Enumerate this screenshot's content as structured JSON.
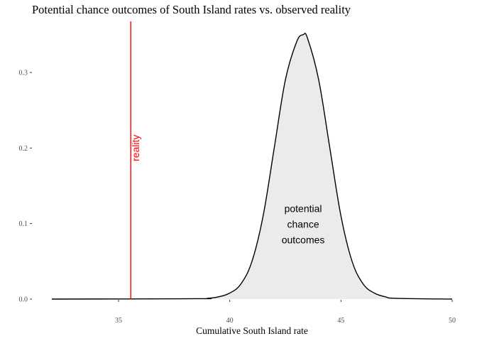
{
  "chart_data": {
    "type": "area",
    "title": "Potential chance outcomes of South Island rates vs. observed reality",
    "xlabel": "Cumulative South Island rate",
    "ylabel": "",
    "xlim": [
      32,
      50
    ],
    "ylim": [
      0,
      0.35
    ],
    "x_ticks": [
      35,
      40,
      45,
      50
    ],
    "x_tick_labels": [
      "35",
      "40",
      "45",
      "50"
    ],
    "y_ticks": [
      0.0,
      0.1,
      0.2,
      0.3
    ],
    "y_tick_labels": [
      "0.0",
      "0.1",
      "0.2",
      "0.3"
    ],
    "grid": false,
    "series": [
      {
        "x": [
          32,
          38.5,
          39,
          39.5,
          40,
          40.5,
          41,
          41.5,
          42,
          42.5,
          43,
          43.3,
          43.5,
          44,
          44.5,
          45,
          45.5,
          46,
          46.5,
          47,
          47.5,
          50
        ],
        "y": [
          0,
          0.0005,
          0.001,
          0.003,
          0.008,
          0.02,
          0.05,
          0.11,
          0.2,
          0.29,
          0.34,
          0.35,
          0.345,
          0.29,
          0.2,
          0.11,
          0.05,
          0.02,
          0.008,
          0.003,
          0.001,
          0
        ],
        "fill": "#ebebeb",
        "stroke": "#000000"
      }
    ],
    "reference_line": {
      "x": 35.55,
      "label": "reality",
      "color": "#ff0000"
    },
    "annotation": {
      "lines": [
        "potential",
        "chance",
        "outcomes"
      ],
      "x": 43.3,
      "y": 0.1
    }
  }
}
